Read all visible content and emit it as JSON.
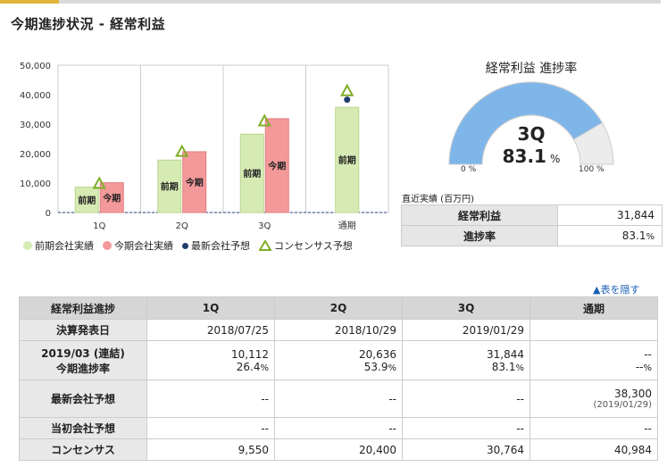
{
  "header": {
    "title": "今期進捗状況 - 経常利益"
  },
  "chart_data": {
    "type": "bar",
    "categories": [
      "1Q",
      "2Q",
      "3Q",
      "通期"
    ],
    "yticks": [
      "50,000",
      "40,000",
      "30,000",
      "20,000",
      "10,000",
      "0"
    ],
    "ylim": [
      0,
      50000
    ],
    "series": [
      {
        "name": "前期会社実績",
        "color": "#d6ebb4",
        "values": [
          8600,
          17800,
          26600,
          35700
        ],
        "bar_label": "前期"
      },
      {
        "name": "今期会社実績",
        "color": "#f4999a",
        "values": [
          10112,
          20636,
          31844,
          null
        ],
        "bar_label": "今期"
      },
      {
        "name": "最新会社予想",
        "color": "#1f3d6e",
        "values": [
          null,
          null,
          null,
          38300
        ]
      },
      {
        "name": "コンセンサス予想",
        "color": "#7fae28",
        "values": [
          9550,
          20400,
          30764,
          40984
        ]
      }
    ]
  },
  "gauge": {
    "title": "経常利益 進捗率",
    "quarter": "3Q",
    "value": "83.1",
    "unit": "%",
    "progress": 0.831,
    "min_label": "0 %",
    "max_label": "100 %",
    "fill_color": "#7eb6ea",
    "track_color": "#ececec"
  },
  "recent": {
    "caption": "直近実績 (百万円)",
    "rows": [
      {
        "label": "経常利益",
        "value": "31,844"
      },
      {
        "label": "進捗率",
        "value": "83.1",
        "unit": "%"
      }
    ]
  },
  "toggle_link": "▲表を隠す",
  "table": {
    "headers": [
      "経常利益進捗",
      "1Q",
      "2Q",
      "3Q",
      "通期"
    ],
    "announce": {
      "label": "決算発表日",
      "values": [
        "2018/07/25",
        "2018/10/29",
        "2019/01/29",
        ""
      ]
    },
    "actual": {
      "label1": "2019/03 (連結)",
      "label2": "今期進捗率",
      "values": [
        "10,112",
        "20,636",
        "31,844",
        "--"
      ],
      "rates": [
        "26.4",
        "53.9",
        "83.1",
        "--"
      ],
      "rate_unit": "%"
    },
    "latest": {
      "label": "最新会社予想",
      "values": [
        "--",
        "--",
        "--",
        "38,300"
      ],
      "note": "(2019/01/29)"
    },
    "initial": {
      "label": "当初会社予想",
      "values": [
        "--",
        "--",
        "--",
        "--"
      ]
    },
    "consensus": {
      "label": "コンセンサス",
      "values": [
        "9,550",
        "20,400",
        "30,764",
        "40,984"
      ]
    }
  }
}
